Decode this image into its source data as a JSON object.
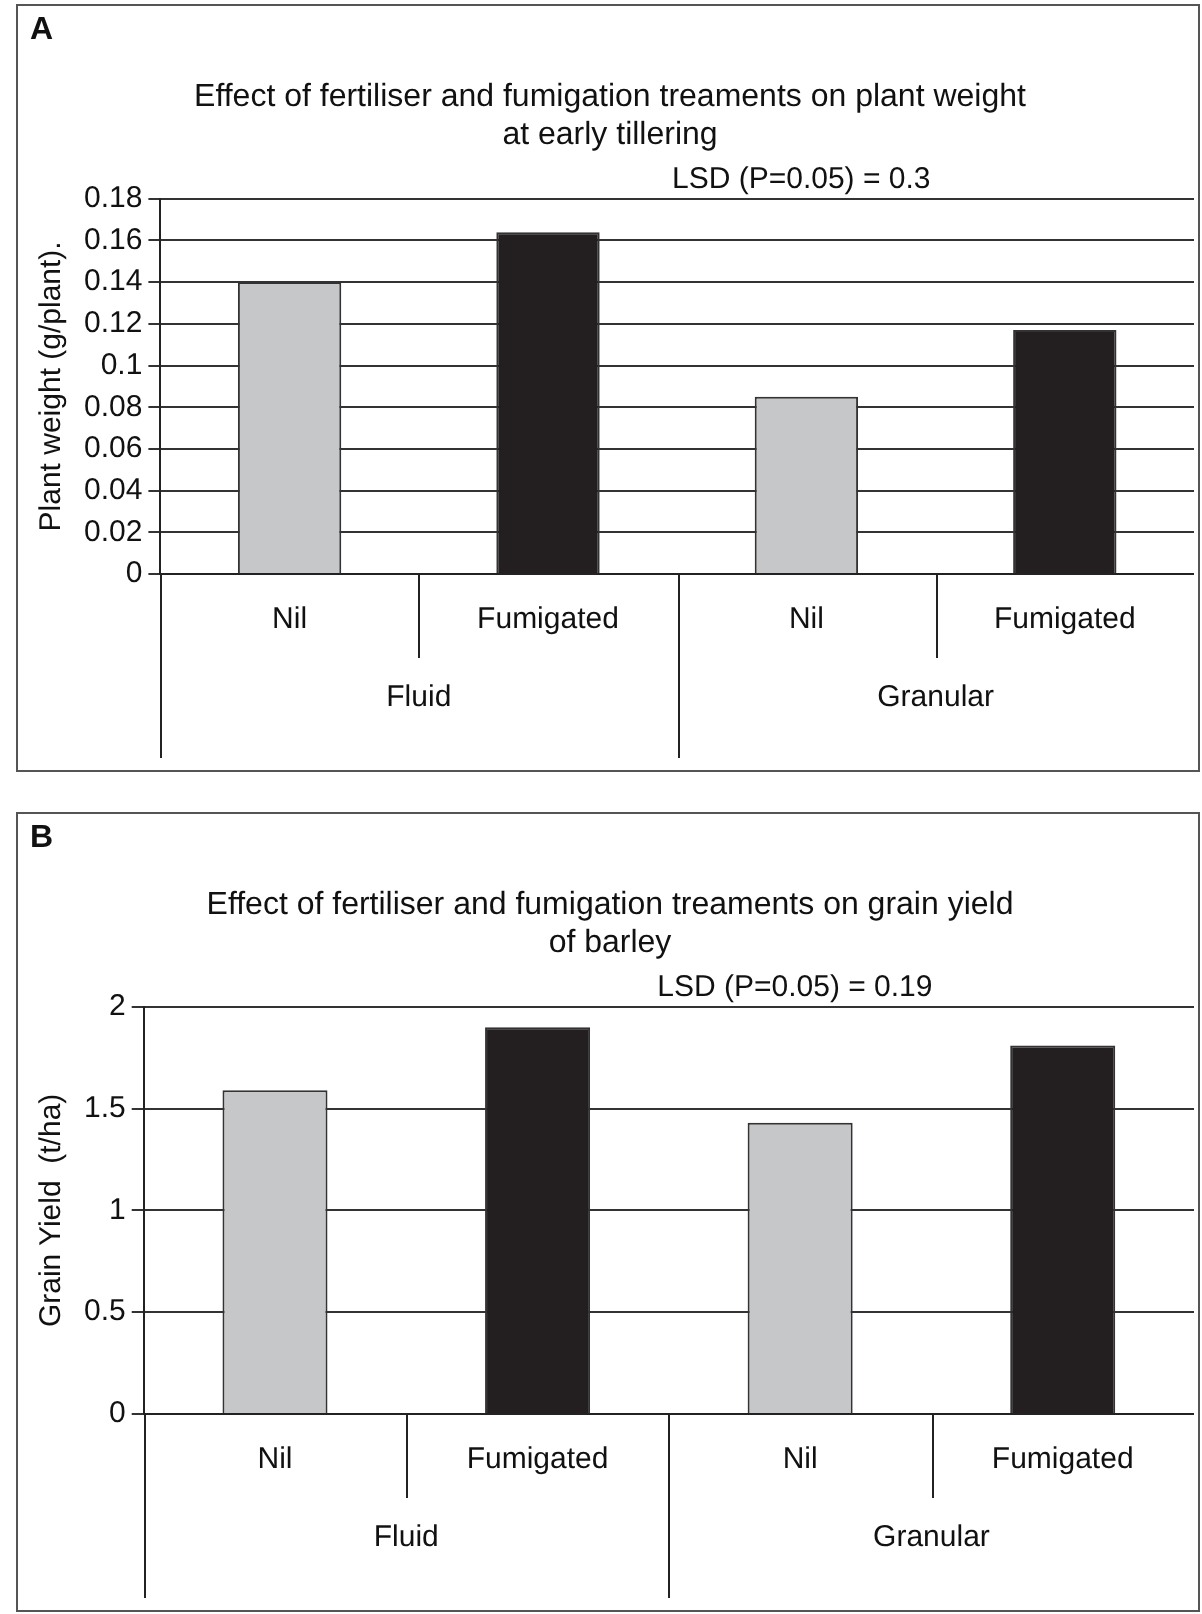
{
  "chart_data": [
    {
      "type": "bar",
      "title": "Effect of fertiliser and fumigation treaments on plant weight at early tillering",
      "ylabel": "Plant weight (g/plant).",
      "categories": [
        "Nil",
        "Fumigated",
        "Nil",
        "Fumigated"
      ],
      "values": [
        0.14,
        0.164,
        0.085,
        0.117
      ],
      "colors": [
        "#c6c7c9",
        "#231f20",
        "#c6c7c9",
        "#231f20"
      ],
      "ylim": [
        0,
        0.18
      ],
      "yticks": [
        0,
        0.02,
        0.04,
        0.06,
        0.08,
        0.1,
        0.12,
        0.14,
        0.16,
        0.18
      ],
      "grid": "y",
      "legend": false,
      "annotations": [
        "A",
        "LSD (P=0.05) = 0.3",
        "Fluid",
        "Granular"
      ]
    },
    {
      "type": "bar",
      "title": "Effect of fertiliser and fumigation treaments on grain yield of barley",
      "ylabel": "Grain Yield  (t/ha)",
      "categories": [
        "Nil",
        "Fumigated",
        "Nil",
        "Fumigated"
      ],
      "values": [
        1.59,
        1.9,
        1.43,
        1.81
      ],
      "colors": [
        "#c6c7c9",
        "#231f20",
        "#c6c7c9",
        "#231f20"
      ],
      "ylim": [
        0,
        2
      ],
      "yticks": [
        0,
        0.5,
        1,
        1.5,
        2
      ],
      "grid": "y",
      "legend": false,
      "annotations": [
        "B",
        "LSD (P=0.05) = 0.19",
        "Fluid",
        "Granular"
      ]
    }
  ]
}
